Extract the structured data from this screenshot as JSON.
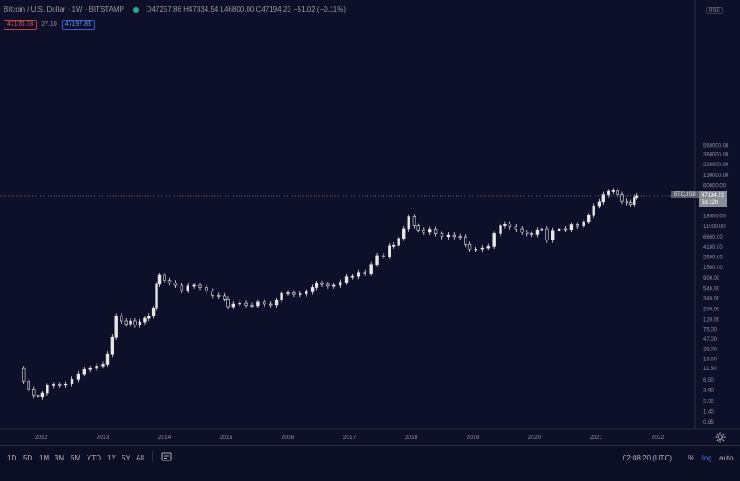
{
  "header": {
    "symbol": "Bitcoin / U.S. Dollar · 1W · BITSTAMP",
    "open": "O47257.86",
    "high": "H47334.54",
    "low": "L46800.00",
    "close": "C47194.23",
    "change": "−51.02 (−0.11%)"
  },
  "badges": {
    "bid": "47170.73",
    "spread": "27.10",
    "ask": "47197.83"
  },
  "price_scale": {
    "currency_box": "USD"
  },
  "current_price": {
    "symbol_tag": "BTCUSD",
    "price": "47194.23",
    "countdown": "6d 22h"
  },
  "bottom_bar": {
    "timeframes": [
      "1D",
      "5D",
      "1M",
      "3M",
      "6M",
      "YTD",
      "1Y",
      "5Y",
      "All"
    ],
    "clock": "02:08:20 (UTC)",
    "percent": "%",
    "log": "log",
    "auto": "auto"
  },
  "colors": {
    "background": "#0d1028",
    "candles": "#e6e6e6",
    "accent": "#4d7cff",
    "up": "#26a69a",
    "down": "#ef5350"
  },
  "icons": {
    "compare": "compare-icon",
    "settings": "gear-icon"
  },
  "chart_data": {
    "type": "line",
    "series": [
      {
        "values": [
          {
            "x": 2011.65,
            "y": 11
          },
          {
            "x": 2011.72,
            "y": 6
          },
          {
            "x": 2011.8,
            "y": 4
          },
          {
            "x": 2011.88,
            "y": 3
          },
          {
            "x": 2011.95,
            "y": 2.8
          },
          {
            "x": 2012.02,
            "y": 3.3
          },
          {
            "x": 2012.1,
            "y": 4.8
          },
          {
            "x": 2012.2,
            "y": 5.0
          },
          {
            "x": 2012.3,
            "y": 4.9
          },
          {
            "x": 2012.4,
            "y": 5.2
          },
          {
            "x": 2012.5,
            "y": 6.5
          },
          {
            "x": 2012.6,
            "y": 8.5
          },
          {
            "x": 2012.7,
            "y": 10.5
          },
          {
            "x": 2012.8,
            "y": 11
          },
          {
            "x": 2012.9,
            "y": 12.5
          },
          {
            "x": 2013.0,
            "y": 13.5
          },
          {
            "x": 2013.08,
            "y": 22
          },
          {
            "x": 2013.15,
            "y": 50
          },
          {
            "x": 2013.22,
            "y": 140
          },
          {
            "x": 2013.3,
            "y": 110
          },
          {
            "x": 2013.38,
            "y": 95
          },
          {
            "x": 2013.45,
            "y": 110
          },
          {
            "x": 2013.52,
            "y": 90
          },
          {
            "x": 2013.6,
            "y": 105
          },
          {
            "x": 2013.68,
            "y": 125
          },
          {
            "x": 2013.75,
            "y": 140
          },
          {
            "x": 2013.82,
            "y": 200
          },
          {
            "x": 2013.87,
            "y": 650
          },
          {
            "x": 2013.92,
            "y": 1000
          },
          {
            "x": 2014.0,
            "y": 780
          },
          {
            "x": 2014.08,
            "y": 700
          },
          {
            "x": 2014.18,
            "y": 620
          },
          {
            "x": 2014.28,
            "y": 480
          },
          {
            "x": 2014.38,
            "y": 600
          },
          {
            "x": 2014.48,
            "y": 620
          },
          {
            "x": 2014.58,
            "y": 560
          },
          {
            "x": 2014.68,
            "y": 470
          },
          {
            "x": 2014.78,
            "y": 380
          },
          {
            "x": 2014.88,
            "y": 370
          },
          {
            "x": 2014.98,
            "y": 320
          },
          {
            "x": 2015.03,
            "y": 220
          },
          {
            "x": 2015.12,
            "y": 250
          },
          {
            "x": 2015.22,
            "y": 260
          },
          {
            "x": 2015.32,
            "y": 235
          },
          {
            "x": 2015.42,
            "y": 230
          },
          {
            "x": 2015.52,
            "y": 275
          },
          {
            "x": 2015.62,
            "y": 250
          },
          {
            "x": 2015.72,
            "y": 240
          },
          {
            "x": 2015.82,
            "y": 300
          },
          {
            "x": 2015.9,
            "y": 420
          },
          {
            "x": 2016.0,
            "y": 430
          },
          {
            "x": 2016.1,
            "y": 400
          },
          {
            "x": 2016.2,
            "y": 410
          },
          {
            "x": 2016.3,
            "y": 450
          },
          {
            "x": 2016.4,
            "y": 560
          },
          {
            "x": 2016.47,
            "y": 680
          },
          {
            "x": 2016.55,
            "y": 650
          },
          {
            "x": 2016.65,
            "y": 600
          },
          {
            "x": 2016.75,
            "y": 620
          },
          {
            "x": 2016.85,
            "y": 720
          },
          {
            "x": 2016.95,
            "y": 930
          },
          {
            "x": 2017.05,
            "y": 950
          },
          {
            "x": 2017.15,
            "y": 1150
          },
          {
            "x": 2017.25,
            "y": 1100
          },
          {
            "x": 2017.35,
            "y": 1700
          },
          {
            "x": 2017.45,
            "y": 2600
          },
          {
            "x": 2017.55,
            "y": 2500
          },
          {
            "x": 2017.65,
            "y": 4200
          },
          {
            "x": 2017.72,
            "y": 4300
          },
          {
            "x": 2017.8,
            "y": 6000
          },
          {
            "x": 2017.88,
            "y": 9500
          },
          {
            "x": 2017.96,
            "y": 17000
          },
          {
            "x": 2018.05,
            "y": 11000
          },
          {
            "x": 2018.12,
            "y": 9000
          },
          {
            "x": 2018.2,
            "y": 8000
          },
          {
            "x": 2018.3,
            "y": 9300
          },
          {
            "x": 2018.4,
            "y": 7500
          },
          {
            "x": 2018.5,
            "y": 6500
          },
          {
            "x": 2018.6,
            "y": 7000
          },
          {
            "x": 2018.7,
            "y": 6500
          },
          {
            "x": 2018.8,
            "y": 6400
          },
          {
            "x": 2018.88,
            "y": 4500
          },
          {
            "x": 2018.95,
            "y": 3500
          },
          {
            "x": 2019.05,
            "y": 3500
          },
          {
            "x": 2019.15,
            "y": 3800
          },
          {
            "x": 2019.25,
            "y": 4100
          },
          {
            "x": 2019.35,
            "y": 7500
          },
          {
            "x": 2019.45,
            "y": 11000
          },
          {
            "x": 2019.52,
            "y": 12000
          },
          {
            "x": 2019.6,
            "y": 10500
          },
          {
            "x": 2019.7,
            "y": 9500
          },
          {
            "x": 2019.8,
            "y": 8000
          },
          {
            "x": 2019.88,
            "y": 7500
          },
          {
            "x": 2019.95,
            "y": 7200
          },
          {
            "x": 2020.05,
            "y": 9000
          },
          {
            "x": 2020.12,
            "y": 9500
          },
          {
            "x": 2020.2,
            "y": 5500
          },
          {
            "x": 2020.3,
            "y": 8800
          },
          {
            "x": 2020.4,
            "y": 9500
          },
          {
            "x": 2020.5,
            "y": 9200
          },
          {
            "x": 2020.6,
            "y": 11500
          },
          {
            "x": 2020.7,
            "y": 10800
          },
          {
            "x": 2020.8,
            "y": 13500
          },
          {
            "x": 2020.88,
            "y": 18000
          },
          {
            "x": 2020.96,
            "y": 29000
          },
          {
            "x": 2021.05,
            "y": 35000
          },
          {
            "x": 2021.12,
            "y": 50000
          },
          {
            "x": 2021.2,
            "y": 58000
          },
          {
            "x": 2021.28,
            "y": 60000
          },
          {
            "x": 2021.35,
            "y": 50000
          },
          {
            "x": 2021.42,
            "y": 36000
          },
          {
            "x": 2021.5,
            "y": 34000
          },
          {
            "x": 2021.56,
            "y": 31000
          },
          {
            "x": 2021.62,
            "y": 44000
          },
          {
            "x": 2021.66,
            "y": 47194.23
          }
        ]
      }
    ],
    "xaxis": {
      "ticks": [
        "2012",
        "2013",
        "2014",
        "2015",
        "2016",
        "2017",
        "2018",
        "2019",
        "2020",
        "2021",
        "2022"
      ]
    },
    "yaxis": {
      "scale": "log",
      "ticks": [
        "560000.00",
        "360000.00",
        "220000.00",
        "130000.00",
        "80000.00",
        "50000.00",
        "30000.00",
        "18000.00",
        "11000.00",
        "6600.00",
        "4100.00",
        "2500.00",
        "1500.00",
        "900.00",
        "540.00",
        "340.00",
        "200.00",
        "120.00",
        "75.00",
        "47.00",
        "29.00",
        "18.00",
        "11.30",
        "6.50",
        "3.90",
        "2.32",
        "1.40",
        "0.85"
      ],
      "range": [
        0.75,
        600000
      ]
    },
    "grid": false
  }
}
